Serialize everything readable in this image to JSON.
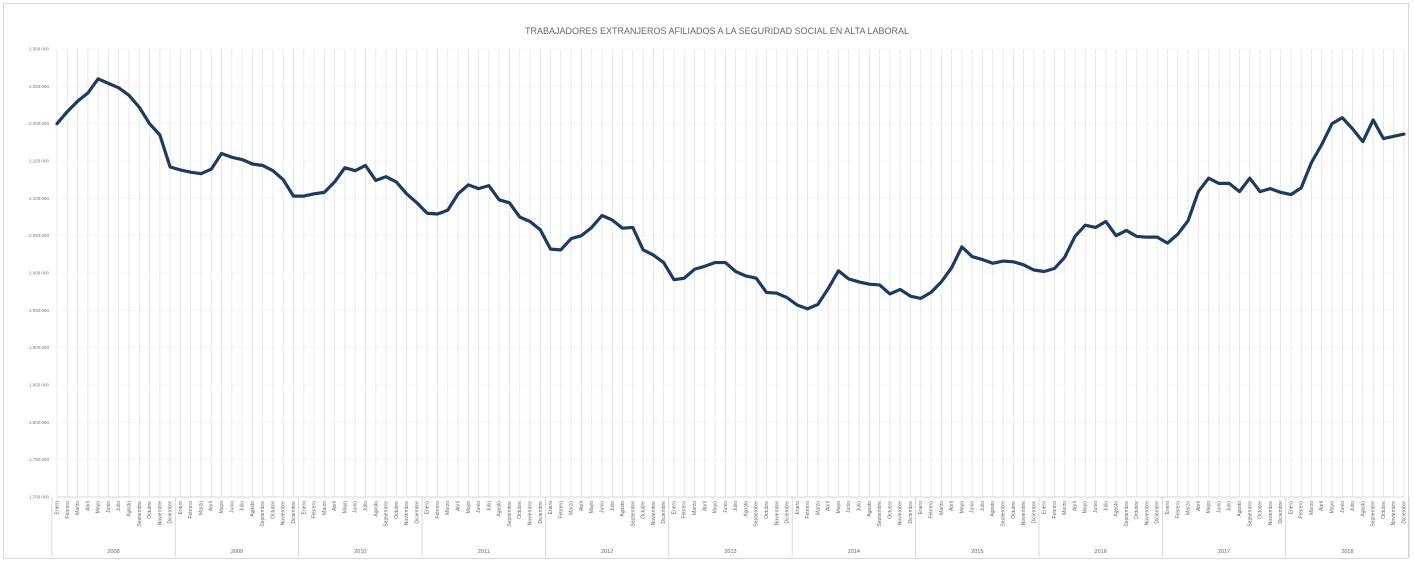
{
  "chart_data": {
    "type": "line",
    "title": "TRABAJADORES EXTRANJEROS AFILIADOS A LA SEGURIDAD SOCIAL EN ALTA LABORAL",
    "xlabel": "",
    "ylabel": "",
    "ylim": [
      1700000,
      2300000
    ],
    "y_ticks": [
      1700000,
      1750000,
      1800000,
      1850000,
      1900000,
      1950000,
      2000000,
      2050000,
      2100000,
      2150000,
      2200000,
      2250000,
      2300000
    ],
    "y_tick_labels": [
      "1.700.000",
      "1.750.000",
      "1.800.000",
      "1.850.000",
      "1.900.000",
      "1.950.000",
      "2.000.000",
      "2.050.000",
      "2.100.000",
      "2.150.000",
      "2.200.000",
      "2.250.000",
      "2.300.000"
    ],
    "months": [
      "Enero",
      "Febrero",
      "Marzo",
      "Abril",
      "Mayo",
      "Junio",
      "Julio",
      "Agosto",
      "Septiembre",
      "Octubre",
      "Noviembre",
      "Diciembre"
    ],
    "years": [
      "2008",
      "2009",
      "2010",
      "2011",
      "2012",
      "2013",
      "2014",
      "2015",
      "2016",
      "2017",
      "2018"
    ],
    "grid": true,
    "legend": "none",
    "line_color": "#1f3a5f",
    "series": [
      {
        "values": [
          2200000,
          2216000,
          2230000,
          2241000,
          2260000,
          2254000,
          2248000,
          2238000,
          2222000,
          2200000,
          2185000,
          2142000,
          2138000,
          2135000,
          2133000,
          2139000,
          2160000,
          2155000,
          2152000,
          2146000,
          2144000,
          2137000,
          2125000,
          2103000,
          2103000,
          2106000,
          2108000,
          2122000,
          2141000,
          2137000,
          2144000,
          2124000,
          2129000,
          2122000,
          2106000,
          2094000,
          2080000,
          2079000,
          2084000,
          2106000,
          2118000,
          2113000,
          2117000,
          2098000,
          2094000,
          2075000,
          2069000,
          2058000,
          2032000,
          2031000,
          2046000,
          2050000,
          2061000,
          2077000,
          2071000,
          2060000,
          2061000,
          2031000,
          2024000,
          2014000,
          1991000,
          1993000,
          2005000,
          2009000,
          2014000,
          2014000,
          2002000,
          1996000,
          1993000,
          1974000,
          1973000,
          1967000,
          1957000,
          1952000,
          1958000,
          1979000,
          2003000,
          1992000,
          1988000,
          1985000,
          1984000,
          1972000,
          1978000,
          1969000,
          1966000,
          1974000,
          1988000,
          2007000,
          2035000,
          2022000,
          2018000,
          2013000,
          2016000,
          2015000,
          2011000,
          2004000,
          2002000,
          2006000,
          2021000,
          2049000,
          2064000,
          2061000,
          2069000,
          2050000,
          2057000,
          2049000,
          2048000,
          2048000,
          2040000,
          2052000,
          2070000,
          2109000,
          2127000,
          2120000,
          2120000,
          2109000,
          2127000,
          2109000,
          2113000,
          2108000,
          2105000,
          2114000,
          2148000,
          2172000,
          2200000,
          2208000,
          2193000,
          2176000,
          2205000,
          2180000,
          2183000,
          2186000
        ]
      }
    ]
  }
}
